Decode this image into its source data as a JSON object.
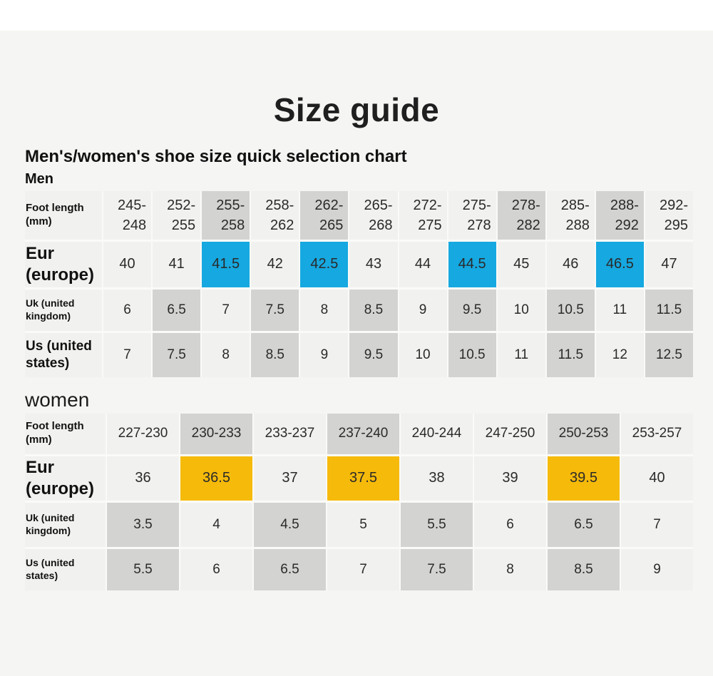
{
  "page": {
    "title": "Size guide",
    "subtitle": "Men's/women's shoe size quick selection chart"
  },
  "colors": {
    "highlight_blue": "#16a8e0",
    "highlight_yellow": "#f6ba0a",
    "highlight_gray": "#d3d3d1",
    "cell_light": "#f1f1ef",
    "page_background": "#f5f5f3"
  },
  "men_table": {
    "section_label": "Men",
    "rows": [
      {
        "kind": "head",
        "label": "Foot length (mm)",
        "cells": [
          {
            "v": "245-\n248"
          },
          {
            "v": "252-\n255"
          },
          {
            "v": "255-\n258",
            "hl": "gray"
          },
          {
            "v": "258-\n262"
          },
          {
            "v": "262-\n265",
            "hl": "gray"
          },
          {
            "v": "265-\n268"
          },
          {
            "v": "272-\n275"
          },
          {
            "v": "275-\n278"
          },
          {
            "v": "278-\n282",
            "hl": "gray"
          },
          {
            "v": "285-\n288"
          },
          {
            "v": "288-\n292",
            "hl": "gray"
          },
          {
            "v": "292-\n295"
          }
        ]
      },
      {
        "kind": "eur",
        "label": "Eur (europe)",
        "cells": [
          {
            "v": "40"
          },
          {
            "v": "41"
          },
          {
            "v": "41.5",
            "hl": "blue"
          },
          {
            "v": "42"
          },
          {
            "v": "42.5",
            "hl": "blue"
          },
          {
            "v": "43"
          },
          {
            "v": "44"
          },
          {
            "v": "44.5",
            "hl": "blue"
          },
          {
            "v": "45"
          },
          {
            "v": "46"
          },
          {
            "v": "46.5",
            "hl": "blue"
          },
          {
            "v": "47"
          }
        ]
      },
      {
        "kind": "uk",
        "label": "Uk (united kingdom)",
        "cells": [
          {
            "v": "6"
          },
          {
            "v": "6.5",
            "hl": "gray"
          },
          {
            "v": "7"
          },
          {
            "v": "7.5",
            "hl": "gray"
          },
          {
            "v": "8"
          },
          {
            "v": "8.5",
            "hl": "gray"
          },
          {
            "v": "9"
          },
          {
            "v": "9.5",
            "hl": "gray"
          },
          {
            "v": "10"
          },
          {
            "v": "10.5",
            "hl": "gray"
          },
          {
            "v": "11"
          },
          {
            "v": "11.5",
            "hl": "gray"
          }
        ]
      },
      {
        "kind": "us",
        "label": "Us (united states)",
        "cells": [
          {
            "v": "7"
          },
          {
            "v": "7.5",
            "hl": "gray"
          },
          {
            "v": "8"
          },
          {
            "v": "8.5",
            "hl": "gray"
          },
          {
            "v": "9"
          },
          {
            "v": "9.5",
            "hl": "gray"
          },
          {
            "v": "10"
          },
          {
            "v": "10.5",
            "hl": "gray"
          },
          {
            "v": "11"
          },
          {
            "v": "11.5",
            "hl": "gray"
          },
          {
            "v": "12"
          },
          {
            "v": "12.5",
            "hl": "gray"
          }
        ]
      }
    ]
  },
  "women_table": {
    "section_label": "women",
    "rows": [
      {
        "kind": "head",
        "label": "Foot length (mm)",
        "cells": [
          {
            "v": "227-230"
          },
          {
            "v": "230-233",
            "hl": "gray"
          },
          {
            "v": "233-237"
          },
          {
            "v": "237-240",
            "hl": "gray"
          },
          {
            "v": "240-244"
          },
          {
            "v": "247-250"
          },
          {
            "v": "250-253",
            "hl": "gray"
          },
          {
            "v": "253-257"
          }
        ]
      },
      {
        "kind": "eur",
        "label": "Eur (europe)",
        "cells": [
          {
            "v": "36"
          },
          {
            "v": "36.5",
            "hl": "yellow"
          },
          {
            "v": "37"
          },
          {
            "v": "37.5",
            "hl": "yellow"
          },
          {
            "v": "38"
          },
          {
            "v": "39"
          },
          {
            "v": "39.5",
            "hl": "yellow"
          },
          {
            "v": "40"
          }
        ]
      },
      {
        "kind": "uk",
        "label": "Uk (united\nkingdom)",
        "cells": [
          {
            "v": "3.5",
            "hl": "gray"
          },
          {
            "v": "4"
          },
          {
            "v": "4.5",
            "hl": "gray"
          },
          {
            "v": "5"
          },
          {
            "v": "5.5",
            "hl": "gray"
          },
          {
            "v": "6"
          },
          {
            "v": "6.5",
            "hl": "gray"
          },
          {
            "v": "7"
          }
        ]
      },
      {
        "kind": "us",
        "label": "Us (united\nstates)",
        "cells": [
          {
            "v": "5.5",
            "hl": "gray"
          },
          {
            "v": "6"
          },
          {
            "v": "6.5",
            "hl": "gray"
          },
          {
            "v": "7"
          },
          {
            "v": "7.5",
            "hl": "gray"
          },
          {
            "v": "8"
          },
          {
            "v": "8.5",
            "hl": "gray"
          },
          {
            "v": "9"
          }
        ]
      }
    ]
  }
}
